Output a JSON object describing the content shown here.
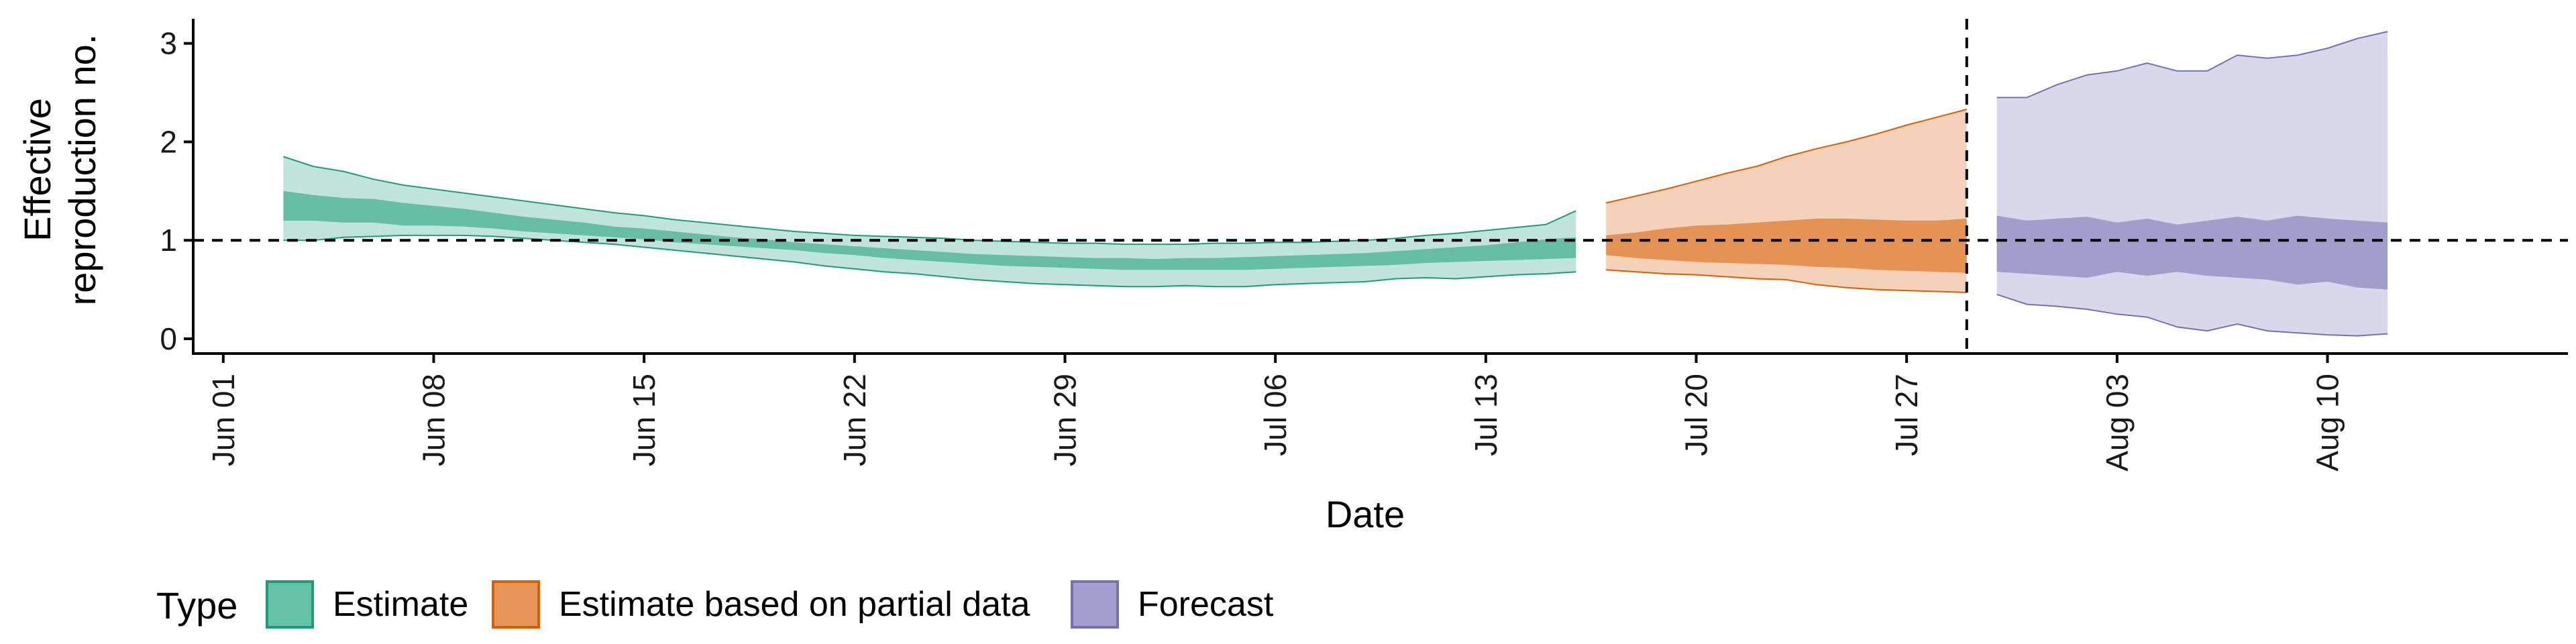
{
  "chart_data": {
    "type": "area",
    "xlabel": "Date",
    "ylabel_lines": [
      "Effective",
      "reproduction no."
    ],
    "x_ticks": [
      {
        "date": "2020-06-01",
        "label": "Jun 01"
      },
      {
        "date": "2020-06-08",
        "label": "Jun 08"
      },
      {
        "date": "2020-06-15",
        "label": "Jun 15"
      },
      {
        "date": "2020-06-22",
        "label": "Jun 22"
      },
      {
        "date": "2020-06-29",
        "label": "Jun 29"
      },
      {
        "date": "2020-07-06",
        "label": "Jul 06"
      },
      {
        "date": "2020-07-13",
        "label": "Jul 13"
      },
      {
        "date": "2020-07-20",
        "label": "Jul 20"
      },
      {
        "date": "2020-07-27",
        "label": "Jul 27"
      },
      {
        "date": "2020-08-03",
        "label": "Aug 03"
      },
      {
        "date": "2020-08-10",
        "label": "Aug 10"
      }
    ],
    "y_ticks": [
      0,
      1,
      2,
      3
    ],
    "xlim": [
      "2020-05-31",
      "2020-08-18"
    ],
    "ylim": [
      -0.15,
      3.25
    ],
    "reference_hline": 1,
    "reference_vline": "2020-07-29",
    "grid": false,
    "legend": {
      "position": "bottom-left",
      "title": "Type",
      "entries": [
        {
          "label": "Estimate",
          "fill": "#66c2a5",
          "stroke": "#1b9e77"
        },
        {
          "label": "Estimate based on partial data",
          "fill": "#e8955a",
          "stroke": "#d95f02"
        },
        {
          "label": "Forecast",
          "fill": "#a39fcf",
          "stroke": "#7570b3"
        }
      ]
    },
    "series": [
      {
        "name": "Estimate",
        "fill": "#1b9e77",
        "stroke": "#1b9e77",
        "x": [
          "2020-06-03",
          "2020-06-04",
          "2020-06-05",
          "2020-06-06",
          "2020-06-07",
          "2020-06-08",
          "2020-06-09",
          "2020-06-10",
          "2020-06-11",
          "2020-06-12",
          "2020-06-13",
          "2020-06-14",
          "2020-06-15",
          "2020-06-16",
          "2020-06-17",
          "2020-06-18",
          "2020-06-19",
          "2020-06-20",
          "2020-06-21",
          "2020-06-22",
          "2020-06-23",
          "2020-06-24",
          "2020-06-25",
          "2020-06-26",
          "2020-06-27",
          "2020-06-28",
          "2020-06-29",
          "2020-06-30",
          "2020-07-01",
          "2020-07-02",
          "2020-07-03",
          "2020-07-04",
          "2020-07-05",
          "2020-07-06",
          "2020-07-07",
          "2020-07-08",
          "2020-07-09",
          "2020-07-10",
          "2020-07-11",
          "2020-07-12",
          "2020-07-13",
          "2020-07-14",
          "2020-07-15",
          "2020-07-16"
        ],
        "lower_90": [
          1.0,
          1.0,
          1.03,
          1.04,
          1.05,
          1.05,
          1.05,
          1.04,
          1.02,
          1.0,
          0.98,
          0.96,
          0.93,
          0.9,
          0.87,
          0.84,
          0.81,
          0.78,
          0.74,
          0.71,
          0.68,
          0.66,
          0.63,
          0.6,
          0.58,
          0.56,
          0.55,
          0.54,
          0.53,
          0.53,
          0.54,
          0.53,
          0.53,
          0.55,
          0.56,
          0.57,
          0.58,
          0.61,
          0.62,
          0.61,
          0.63,
          0.65,
          0.66,
          0.68
        ],
        "lower_50": [
          1.2,
          1.2,
          1.18,
          1.18,
          1.15,
          1.15,
          1.14,
          1.12,
          1.09,
          1.07,
          1.05,
          1.03,
          1.01,
          0.98,
          0.96,
          0.94,
          0.92,
          0.9,
          0.87,
          0.85,
          0.82,
          0.8,
          0.78,
          0.76,
          0.74,
          0.73,
          0.72,
          0.71,
          0.7,
          0.7,
          0.7,
          0.7,
          0.7,
          0.71,
          0.72,
          0.73,
          0.74,
          0.75,
          0.77,
          0.78,
          0.79,
          0.8,
          0.81,
          0.82
        ],
        "upper_50": [
          1.5,
          1.46,
          1.43,
          1.42,
          1.38,
          1.35,
          1.32,
          1.28,
          1.24,
          1.21,
          1.18,
          1.14,
          1.12,
          1.09,
          1.06,
          1.03,
          1.01,
          0.98,
          0.96,
          0.94,
          0.92,
          0.9,
          0.88,
          0.86,
          0.85,
          0.84,
          0.83,
          0.82,
          0.82,
          0.81,
          0.82,
          0.82,
          0.83,
          0.84,
          0.85,
          0.86,
          0.87,
          0.89,
          0.91,
          0.93,
          0.95,
          0.98,
          1.01,
          1.03
        ],
        "upper_90": [
          1.85,
          1.75,
          1.7,
          1.62,
          1.56,
          1.52,
          1.48,
          1.44,
          1.4,
          1.36,
          1.32,
          1.28,
          1.25,
          1.21,
          1.18,
          1.15,
          1.12,
          1.09,
          1.07,
          1.05,
          1.04,
          1.03,
          1.02,
          1.0,
          0.99,
          0.98,
          0.97,
          0.97,
          0.96,
          0.96,
          0.96,
          0.97,
          0.97,
          0.98,
          0.98,
          0.99,
          1.0,
          1.02,
          1.05,
          1.07,
          1.1,
          1.13,
          1.16,
          1.3
        ]
      },
      {
        "name": "Estimate based on partial data",
        "fill": "#d95f02",
        "stroke": "#d95f02",
        "x": [
          "2020-07-17",
          "2020-07-18",
          "2020-07-19",
          "2020-07-20",
          "2020-07-21",
          "2020-07-22",
          "2020-07-23",
          "2020-07-24",
          "2020-07-25",
          "2020-07-26",
          "2020-07-27",
          "2020-07-28",
          "2020-07-29"
        ],
        "lower_90": [
          0.7,
          0.68,
          0.66,
          0.65,
          0.63,
          0.61,
          0.6,
          0.55,
          0.52,
          0.5,
          0.49,
          0.48,
          0.47
        ],
        "lower_50": [
          0.85,
          0.82,
          0.8,
          0.78,
          0.77,
          0.76,
          0.75,
          0.73,
          0.72,
          0.7,
          0.69,
          0.68,
          0.67
        ],
        "upper_50": [
          1.05,
          1.08,
          1.12,
          1.15,
          1.16,
          1.18,
          1.2,
          1.22,
          1.22,
          1.21,
          1.2,
          1.2,
          1.22
        ],
        "upper_90": [
          1.38,
          1.45,
          1.52,
          1.6,
          1.68,
          1.75,
          1.85,
          1.93,
          2.0,
          2.08,
          2.17,
          2.25,
          2.33
        ]
      },
      {
        "name": "Forecast",
        "fill": "#7570b3",
        "stroke": "#7570b3",
        "x": [
          "2020-07-30",
          "2020-07-31",
          "2020-08-01",
          "2020-08-02",
          "2020-08-03",
          "2020-08-04",
          "2020-08-05",
          "2020-08-06",
          "2020-08-07",
          "2020-08-08",
          "2020-08-09",
          "2020-08-10",
          "2020-08-11",
          "2020-08-12"
        ],
        "lower_90": [
          0.45,
          0.35,
          0.33,
          0.3,
          0.25,
          0.22,
          0.12,
          0.08,
          0.15,
          0.08,
          0.06,
          0.04,
          0.03,
          0.05
        ],
        "lower_50": [
          0.68,
          0.66,
          0.64,
          0.62,
          0.68,
          0.64,
          0.68,
          0.64,
          0.62,
          0.6,
          0.55,
          0.58,
          0.52,
          0.5
        ],
        "upper_50": [
          1.25,
          1.2,
          1.22,
          1.24,
          1.18,
          1.22,
          1.16,
          1.2,
          1.24,
          1.2,
          1.25,
          1.22,
          1.2,
          1.18
        ],
        "upper_90": [
          2.45,
          2.45,
          2.58,
          2.68,
          2.72,
          2.8,
          2.72,
          2.72,
          2.88,
          2.85,
          2.88,
          2.95,
          3.05,
          3.12
        ]
      }
    ]
  }
}
